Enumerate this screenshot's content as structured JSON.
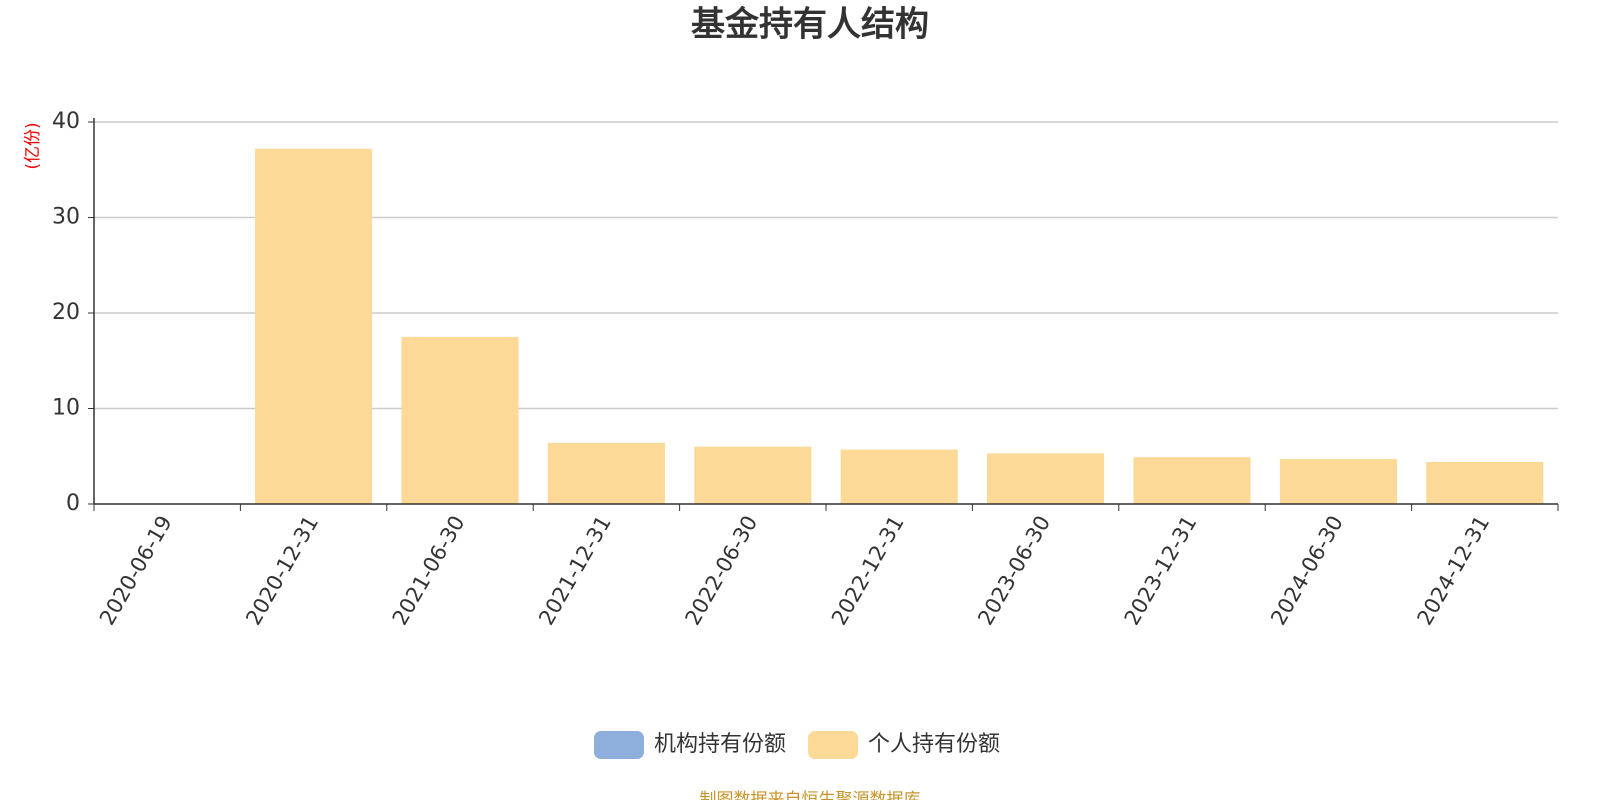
{
  "chart_data": {
    "type": "bar",
    "stacked": true,
    "title": "基金持有人结构",
    "y_label": "(亿份)",
    "categories": [
      "2020-06-19",
      "2020-12-31",
      "2021-06-30",
      "2021-12-31",
      "2022-06-30",
      "2022-12-31",
      "2023-06-30",
      "2023-12-31",
      "2024-06-30",
      "2024-12-31"
    ],
    "series": [
      {
        "name": "机构持有份额",
        "color": "#8eaedb",
        "values": [
          0,
          0,
          0,
          0,
          0,
          0,
          0,
          0,
          0,
          0
        ]
      },
      {
        "name": "个人持有份额",
        "color": "#fdd998",
        "values": [
          0,
          37.2,
          17.5,
          6.4,
          6.0,
          5.7,
          5.3,
          4.9,
          4.7,
          4.4
        ]
      }
    ],
    "ylim": [
      0,
      40
    ],
    "yticks": [
      0,
      10,
      20,
      30,
      40
    ],
    "grid": true,
    "legend": "bottom",
    "source": "制图数据来自恒生聚源数据库"
  }
}
